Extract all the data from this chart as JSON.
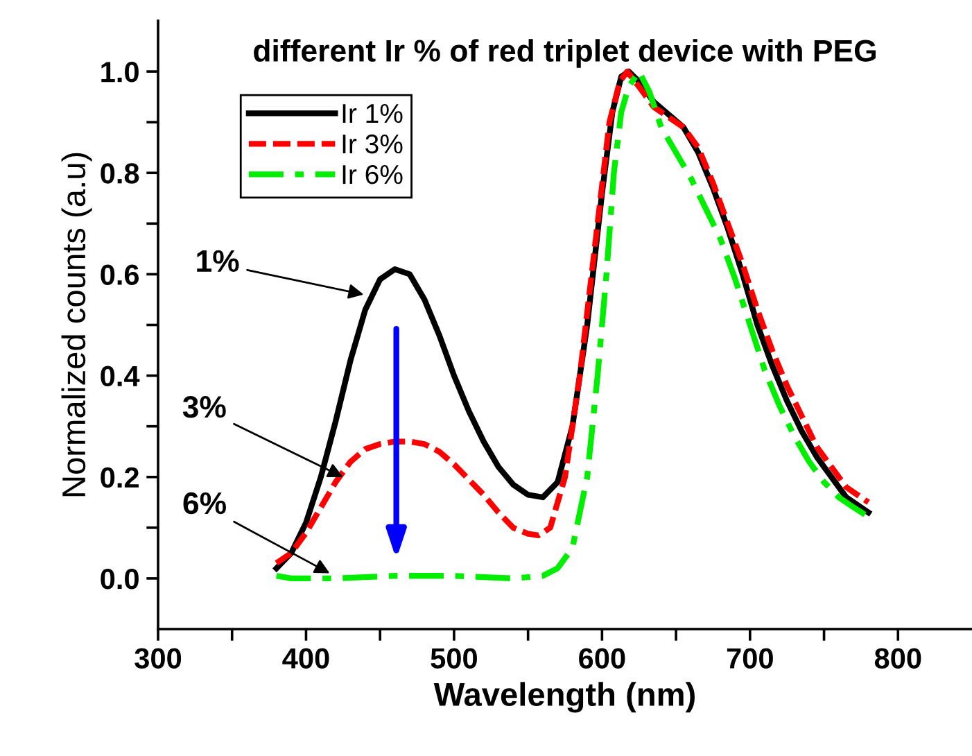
{
  "chart_data": {
    "type": "line",
    "title": "different Ir % of red triplet device with PEG",
    "xlabel": "Wavelength (nm)",
    "ylabel": "Normalized counts (a.u)",
    "xlim": [
      300,
      850
    ],
    "ylim": [
      -0.1,
      1.1
    ],
    "xticks": [
      300,
      {
        "value": 350,
        "label": null
      },
      400,
      {
        "value": 450,
        "label": null
      },
      500,
      {
        "value": 550,
        "label": null
      },
      600,
      {
        "value": 650,
        "label": null
      },
      700,
      {
        "value": 750,
        "label": null
      },
      800
    ],
    "yticks": [
      {
        "value": 0.0,
        "label": "0.0"
      },
      {
        "value": 0.1,
        "label": null
      },
      0.2,
      {
        "value": 0.3,
        "label": null
      },
      0.4,
      {
        "value": 0.5,
        "label": null
      },
      0.6,
      {
        "value": 0.7,
        "label": null
      },
      0.8,
      {
        "value": 0.9,
        "label": null
      },
      {
        "value": 1.0,
        "label": "1.0"
      }
    ],
    "grid": false,
    "legend": "top left",
    "marker": "none",
    "series": [
      {
        "name": "Ir 1%",
        "color": "#000000",
        "line_style": "solid",
        "x": [
          380,
          390,
          400,
          410,
          420,
          430,
          440,
          450,
          460,
          470,
          480,
          490,
          500,
          510,
          520,
          530,
          540,
          550,
          560,
          570,
          580,
          590,
          600,
          607,
          613,
          618,
          625,
          635,
          645,
          655,
          665,
          675,
          685,
          695,
          705,
          715,
          725,
          735,
          745,
          755,
          765,
          780
        ],
        "values": [
          0.02,
          0.05,
          0.11,
          0.2,
          0.31,
          0.43,
          0.53,
          0.59,
          0.61,
          0.6,
          0.55,
          0.48,
          0.4,
          0.33,
          0.27,
          0.22,
          0.185,
          0.165,
          0.16,
          0.19,
          0.3,
          0.5,
          0.76,
          0.92,
          0.99,
          1.0,
          0.98,
          0.94,
          0.915,
          0.89,
          0.84,
          0.77,
          0.69,
          0.6,
          0.5,
          0.42,
          0.35,
          0.29,
          0.24,
          0.2,
          0.16,
          0.13
        ]
      },
      {
        "name": "Ir 3%",
        "color": "#ff0000",
        "line_style": "dashed",
        "x": [
          380,
          390,
          400,
          410,
          420,
          430,
          440,
          450,
          460,
          470,
          480,
          490,
          500,
          510,
          520,
          530,
          540,
          550,
          557,
          565,
          575,
          585,
          595,
          605,
          612,
          617,
          625,
          635,
          645,
          655,
          665,
          675,
          685,
          695,
          705,
          715,
          725,
          735,
          745,
          755,
          765,
          780
        ],
        "values": [
          0.03,
          0.05,
          0.09,
          0.14,
          0.19,
          0.23,
          0.255,
          0.265,
          0.27,
          0.27,
          0.265,
          0.25,
          0.225,
          0.195,
          0.165,
          0.13,
          0.1,
          0.088,
          0.085,
          0.1,
          0.2,
          0.4,
          0.65,
          0.9,
          0.98,
          1.0,
          0.97,
          0.93,
          0.91,
          0.89,
          0.85,
          0.78,
          0.7,
          0.62,
          0.53,
          0.45,
          0.38,
          0.32,
          0.26,
          0.22,
          0.18,
          0.15
        ]
      },
      {
        "name": "Ir 6%",
        "color": "#00ee00",
        "line_style": "dashdot",
        "x": [
          380,
          390,
          420,
          460,
          500,
          540,
          560,
          570,
          580,
          590,
          597,
          603,
          608,
          613,
          618,
          625,
          632,
          640,
          650,
          660,
          670,
          680,
          690,
          700,
          710,
          720,
          730,
          740,
          750,
          760,
          770,
          778
        ],
        "values": [
          0.005,
          0.0,
          0.0,
          0.005,
          0.005,
          0.0,
          0.005,
          0.02,
          0.06,
          0.2,
          0.4,
          0.6,
          0.8,
          0.92,
          0.97,
          1.0,
          0.96,
          0.89,
          0.84,
          0.79,
          0.73,
          0.67,
          0.59,
          0.5,
          0.41,
          0.34,
          0.28,
          0.23,
          0.19,
          0.16,
          0.14,
          0.125
        ]
      }
    ],
    "annotations": [
      {
        "text": "1%",
        "x": 439,
        "y": 0.56
      },
      {
        "text": "3%",
        "x": 425,
        "y": 0.2
      },
      {
        "text": "6%",
        "x": 416,
        "y": 0.01
      }
    ]
  }
}
